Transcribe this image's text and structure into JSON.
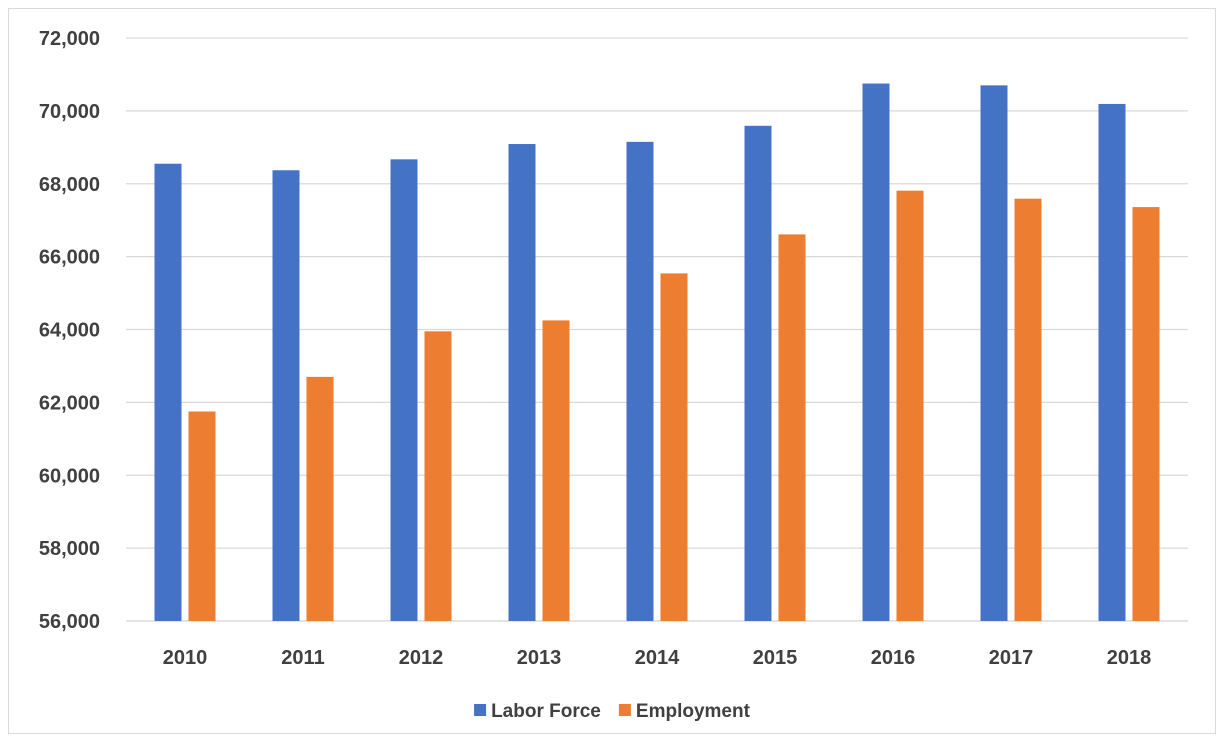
{
  "chart_data": {
    "type": "bar",
    "categories": [
      "2010",
      "2011",
      "2012",
      "2013",
      "2014",
      "2015",
      "2016",
      "2017",
      "2018"
    ],
    "series": [
      {
        "name": "Labor Force",
        "color": "#4472C4",
        "values": [
          68550,
          68370,
          68670,
          69090,
          69150,
          69590,
          70750,
          70700,
          70190
        ]
      },
      {
        "name": "Employment",
        "color": "#ED7D31",
        "values": [
          61750,
          62700,
          63950,
          64250,
          65540,
          66610,
          67810,
          67590,
          67360
        ]
      }
    ],
    "y_ticks": [
      "56,000",
      "58,000",
      "60,000",
      "62,000",
      "64,000",
      "66,000",
      "68,000",
      "70,000",
      "72,000"
    ],
    "ylim": [
      56000,
      72000
    ],
    "grid": true,
    "legend_position": "bottom",
    "title": "",
    "xlabel": "",
    "ylabel": ""
  }
}
